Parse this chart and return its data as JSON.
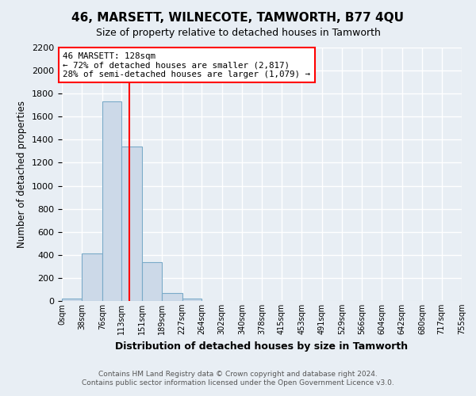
{
  "title": "46, MARSETT, WILNECOTE, TAMWORTH, B77 4QU",
  "subtitle": "Size of property relative to detached houses in Tamworth",
  "xlabel": "Distribution of detached houses by size in Tamworth",
  "ylabel": "Number of detached properties",
  "bin_edges": [
    0,
    38,
    76,
    113,
    151,
    189,
    227,
    264,
    302,
    340,
    378,
    415,
    453,
    491,
    529,
    566,
    604,
    642,
    680,
    717,
    755
  ],
  "bin_labels": [
    "0sqm",
    "38sqm",
    "76sqm",
    "113sqm",
    "151sqm",
    "189sqm",
    "227sqm",
    "264sqm",
    "302sqm",
    "340sqm",
    "378sqm",
    "415sqm",
    "453sqm",
    "491sqm",
    "529sqm",
    "566sqm",
    "604sqm",
    "642sqm",
    "680sqm",
    "717sqm",
    "755sqm"
  ],
  "bar_heights": [
    20,
    410,
    1730,
    1340,
    340,
    70,
    20,
    0,
    0,
    0,
    0,
    0,
    0,
    0,
    0,
    0,
    0,
    0,
    0,
    0
  ],
  "bar_color": "#ccd9e8",
  "bar_edgecolor": "#7aaac8",
  "vline_x": 128,
  "vline_color": "red",
  "ylim": [
    0,
    2200
  ],
  "yticks": [
    0,
    200,
    400,
    600,
    800,
    1000,
    1200,
    1400,
    1600,
    1800,
    2000,
    2200
  ],
  "annotation_title": "46 MARSETT: 128sqm",
  "annotation_line1": "← 72% of detached houses are smaller (2,817)",
  "annotation_line2": "28% of semi-detached houses are larger (1,079) →",
  "annotation_box_facecolor": "#ffffff",
  "annotation_box_edgecolor": "red",
  "footer_line1": "Contains HM Land Registry data © Crown copyright and database right 2024.",
  "footer_line2": "Contains public sector information licensed under the Open Government Licence v3.0.",
  "fig_facecolor": "#e8eef4",
  "ax_facecolor": "#e8eef4",
  "grid_color": "#ffffff",
  "title_fontsize": 11,
  "subtitle_fontsize": 9
}
